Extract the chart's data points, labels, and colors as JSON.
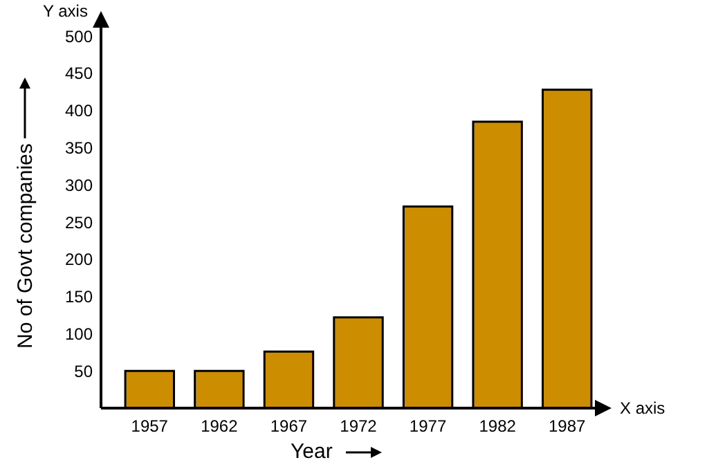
{
  "chart_data": {
    "type": "bar",
    "xlabel": "Year",
    "ylabel": "No of Govt companies",
    "categories": [
      "1957",
      "1962",
      "1967",
      "1972",
      "1977",
      "1982",
      "1987"
    ],
    "values": [
      50,
      50,
      76,
      122,
      271,
      385,
      428
    ],
    "color": "#cc8e00",
    "ylim": [
      0,
      530
    ],
    "yticks": [
      50,
      100,
      150,
      200,
      250,
      300,
      350,
      400,
      450,
      500
    ],
    "grid": false,
    "annotations": [
      "Y axis",
      "X axis"
    ]
  }
}
